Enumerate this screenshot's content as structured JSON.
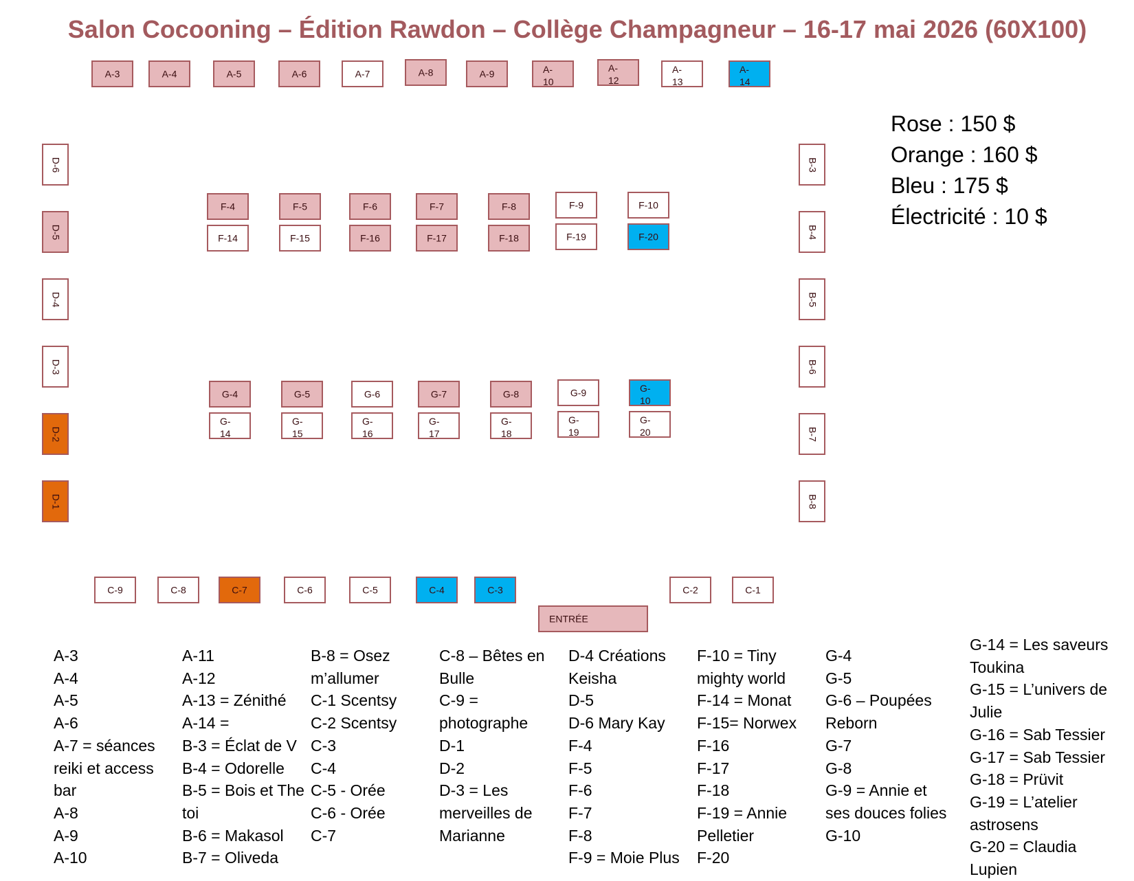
{
  "title": "Salon Cocooning – Édition Rawdon – Collège Champagneur – 16-17 mai 2026 (60X100)",
  "colors": {
    "rose": "#e6b8bb",
    "orange": "#e2690c",
    "bleu": "#00b0f0",
    "blanc": "#ffffff"
  },
  "prices": [
    "Rose : 150 $",
    "Orange : 160 $",
    "Bleu : 175 $",
    "Électricité : 10 $"
  ],
  "entrance": "ENTRÉE",
  "booths": {
    "row_a": [
      {
        "label": "A-3",
        "color": "rose"
      },
      {
        "label": "A-4",
        "color": "rose"
      },
      {
        "label": "A-5",
        "color": "rose"
      },
      {
        "label": "A-6",
        "color": "rose"
      },
      {
        "label": "A-7",
        "color": "blanc"
      },
      {
        "label": "A-8",
        "color": "rose"
      },
      {
        "label": "A-9",
        "color": "rose"
      },
      {
        "label": "A-10",
        "color": "rose"
      },
      {
        "label": "A-12",
        "color": "rose"
      },
      {
        "label": "A-13",
        "color": "blanc"
      },
      {
        "label": "A-14",
        "color": "bleu"
      }
    ],
    "row_d": [
      {
        "label": "D-6",
        "color": "blanc"
      },
      {
        "label": "D-5",
        "color": "rose"
      },
      {
        "label": "D-4",
        "color": "blanc"
      },
      {
        "label": "D-3",
        "color": "blanc"
      },
      {
        "label": "D-2",
        "color": "orange"
      },
      {
        "label": "D-1",
        "color": "orange"
      }
    ],
    "row_b": [
      {
        "label": "B-3",
        "color": "blanc"
      },
      {
        "label": "B-4",
        "color": "blanc"
      },
      {
        "label": "B-5",
        "color": "blanc"
      },
      {
        "label": "B-6",
        "color": "blanc"
      },
      {
        "label": "B-7",
        "color": "blanc"
      },
      {
        "label": "B-8",
        "color": "blanc"
      }
    ],
    "row_f_top": [
      {
        "label": "F-4",
        "color": "rose"
      },
      {
        "label": "F-5",
        "color": "rose"
      },
      {
        "label": "F-6",
        "color": "rose"
      },
      {
        "label": "F-7",
        "color": "rose"
      },
      {
        "label": "F-8",
        "color": "rose"
      },
      {
        "label": "F-9",
        "color": "blanc"
      },
      {
        "label": "F-10",
        "color": "blanc"
      }
    ],
    "row_f_bottom": [
      {
        "label": "F-14",
        "color": "blanc"
      },
      {
        "label": "F-15",
        "color": "blanc"
      },
      {
        "label": "F-16",
        "color": "rose"
      },
      {
        "label": "F-17",
        "color": "rose"
      },
      {
        "label": "F-18",
        "color": "rose"
      },
      {
        "label": "F-19",
        "color": "blanc"
      },
      {
        "label": "F-20",
        "color": "bleu"
      }
    ],
    "row_g_top": [
      {
        "label": "G-4",
        "color": "rose"
      },
      {
        "label": "G-5",
        "color": "rose"
      },
      {
        "label": "G-6",
        "color": "blanc"
      },
      {
        "label": "G-7",
        "color": "rose"
      },
      {
        "label": "G-8",
        "color": "rose"
      },
      {
        "label": "G-9",
        "color": "blanc"
      },
      {
        "label": "G-10",
        "color": "bleu"
      }
    ],
    "row_g_bottom": [
      {
        "label": "G-14",
        "color": "blanc"
      },
      {
        "label": "G-15",
        "color": "blanc"
      },
      {
        "label": "G-16",
        "color": "blanc"
      },
      {
        "label": "G-17",
        "color": "blanc"
      },
      {
        "label": "G-18",
        "color": "blanc"
      },
      {
        "label": "G-19",
        "color": "blanc"
      },
      {
        "label": "G-20",
        "color": "blanc"
      }
    ],
    "row_c": [
      {
        "label": "C-9",
        "color": "blanc"
      },
      {
        "label": "C-8",
        "color": "blanc"
      },
      {
        "label": "C-7",
        "color": "orange"
      },
      {
        "label": "C-6",
        "color": "blanc"
      },
      {
        "label": "C-5",
        "color": "blanc"
      },
      {
        "label": "C-4",
        "color": "bleu"
      },
      {
        "label": "C-3",
        "color": "bleu"
      },
      {
        "label": "C-2",
        "color": "blanc"
      },
      {
        "label": "C-1",
        "color": "blanc"
      }
    ]
  },
  "legend": [
    [
      "A-3",
      "A-4",
      "A-5",
      "A-6",
      "A-7 = séances",
      "reiki et access",
      "bar",
      "A-8",
      "A-9",
      "A-10"
    ],
    [
      "A-11",
      "A-12",
      "A-13 = Zénithé",
      "A-14 =",
      "B-3 = Éclat de V",
      "B-4 = Odorelle",
      "B-5 = Bois et The",
      "toi",
      "B-6 = Makasol",
      "B-7 = Oliveda"
    ],
    [
      "B-8 = Osez",
      "m’allumer",
      "C-1 Scentsy",
      "C-2 Scentsy",
      "C-3",
      "C-4",
      "C-5 - Orée",
      "C-6 - Orée",
      "C-7"
    ],
    [
      "C-8 – Bêtes en",
      "Bulle",
      "C-9 =",
      "photographe",
      "D-1",
      "D-2",
      "D-3 = Les",
      "merveilles de",
      "Marianne"
    ],
    [
      "D-4 Créations",
      "Keisha",
      "D-5",
      "D-6 Mary Kay",
      "F-4",
      "F-5",
      "F-6",
      "F-7",
      "F-8",
      "F-9 = Moie Plus"
    ],
    [
      "F-10 = Tiny",
      "mighty world",
      "F-14 = Monat",
      "F-15= Norwex",
      "F-16",
      "F-17",
      "F-18",
      "F-19 = Annie",
      "Pelletier",
      "F-20"
    ],
    [
      "G-4",
      "G-5",
      "G-6 – Poupées",
      "Reborn",
      "G-7",
      "G-8",
      "G-9 = Annie et",
      "ses douces folies",
      "G-10"
    ],
    [
      "G-14 = Les saveurs",
      "Toukina",
      "G-15 = L’univers de",
      "Julie",
      "G-16 = Sab Tessier",
      "G-17 = Sab Tessier",
      "G-18 = Prüvit",
      "G-19 = L’atelier",
      "astrosens",
      "G-20 = Claudia",
      "Lupien"
    ]
  ]
}
